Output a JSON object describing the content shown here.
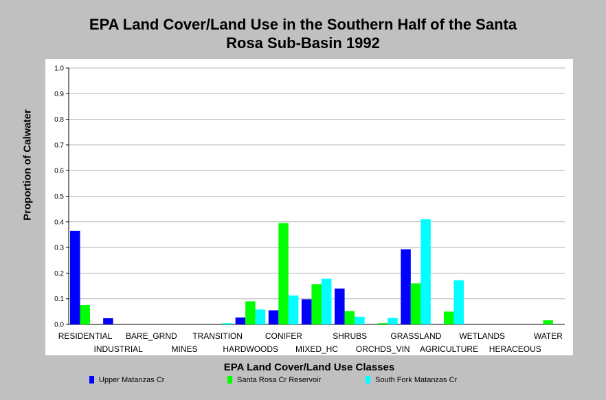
{
  "chart_data": {
    "type": "bar",
    "title_lines": [
      "EPA Land Cover/Land Use in the Southern Half of the Santa",
      "Rosa Sub-Basin 1992"
    ],
    "xlabel": "EPA Land Cover/Land Use Classes",
    "ylabel": "Proportion of Calwater",
    "ylim": [
      0,
      1.0
    ],
    "yticks": [
      "0.0",
      "0.1",
      "0.2",
      "0.3",
      "0.4",
      "0.5",
      "0.6",
      "0.7",
      "0.8",
      "0.9",
      "1.0"
    ],
    "grid": true,
    "legend_position": "bottom",
    "categories": [
      "RESIDENTIAL",
      "INDUSTRIAL",
      "BARE_GRND",
      "MINES",
      "TRANSITION",
      "HARDWOODS",
      "CONIFER",
      "MIXED_HC",
      "SHRUBS",
      "ORCHDS_VIN",
      "GRASSLAND",
      "AGRICULTURE",
      "WETLANDS",
      "HERACEOUS",
      "WATER"
    ],
    "series": [
      {
        "name": "Upper Matanzas Cr",
        "color": "#0000ff",
        "values": [
          0.365,
          0.024,
          0,
          0,
          0,
          0.027,
          0.055,
          0.098,
          0.14,
          0,
          0.293,
          0,
          0,
          0,
          0
        ]
      },
      {
        "name": "Santa Rosa Cr Reservoir",
        "color": "#00ff00",
        "values": [
          0.075,
          0,
          0,
          0,
          0,
          0.09,
          0.395,
          0.157,
          0.052,
          0.005,
          0.16,
          0.05,
          0,
          0,
          0.016
        ]
      },
      {
        "name": "South Fork Matanzas Cr",
        "color": "#00ffff",
        "values": [
          0,
          0,
          0,
          0,
          0.005,
          0.058,
          0.113,
          0.178,
          0.03,
          0.025,
          0.41,
          0.172,
          0,
          0,
          0
        ]
      }
    ]
  }
}
